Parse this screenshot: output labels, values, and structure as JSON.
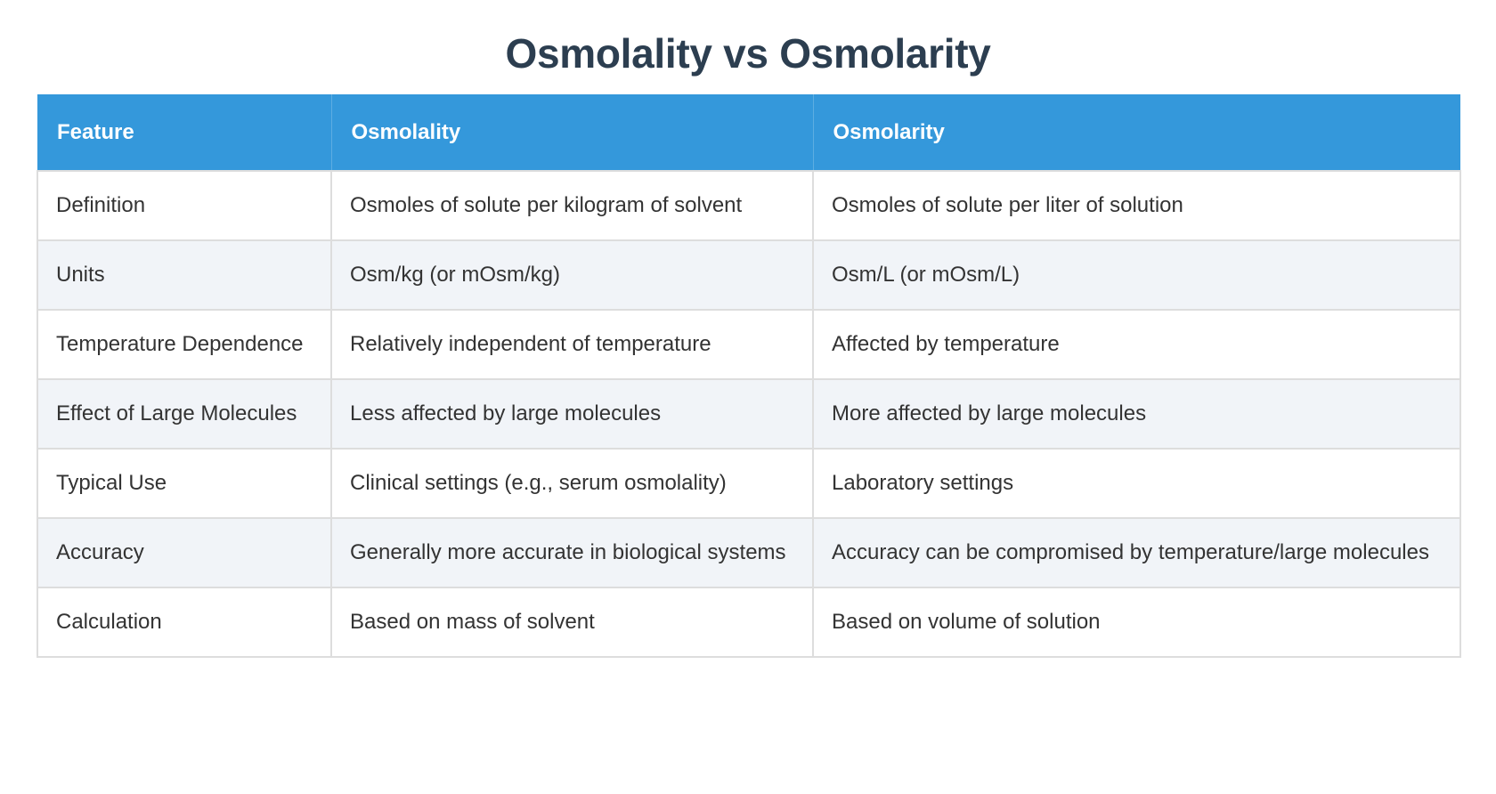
{
  "title": "Osmolality vs Osmolarity",
  "colors": {
    "title": "#2c3e50",
    "header_bg": "#3498db",
    "header_text": "#ffffff",
    "row_alt_bg": "#f1f4f8",
    "border": "#dddddd",
    "body_text": "#333333"
  },
  "table": {
    "headers": [
      "Feature",
      "Osmolality",
      "Osmolarity"
    ],
    "rows": [
      [
        "Definition",
        "Osmoles of solute per kilogram of solvent",
        "Osmoles of solute per liter of solution"
      ],
      [
        "Units",
        "Osm/kg (or mOsm/kg)",
        "Osm/L (or mOsm/L)"
      ],
      [
        "Temperature Dependence",
        "Relatively independent of temperature",
        "Affected by temperature"
      ],
      [
        "Effect of Large Molecules",
        "Less affected by large molecules",
        "More affected by large molecules"
      ],
      [
        "Typical Use",
        "Clinical settings (e.g., serum osmolality)",
        "Laboratory settings"
      ],
      [
        "Accuracy",
        "Generally more accurate in biological systems",
        "Accuracy can be compromised by temperature/large molecules"
      ],
      [
        "Calculation",
        "Based on mass of solvent",
        "Based on volume of solution"
      ]
    ]
  }
}
